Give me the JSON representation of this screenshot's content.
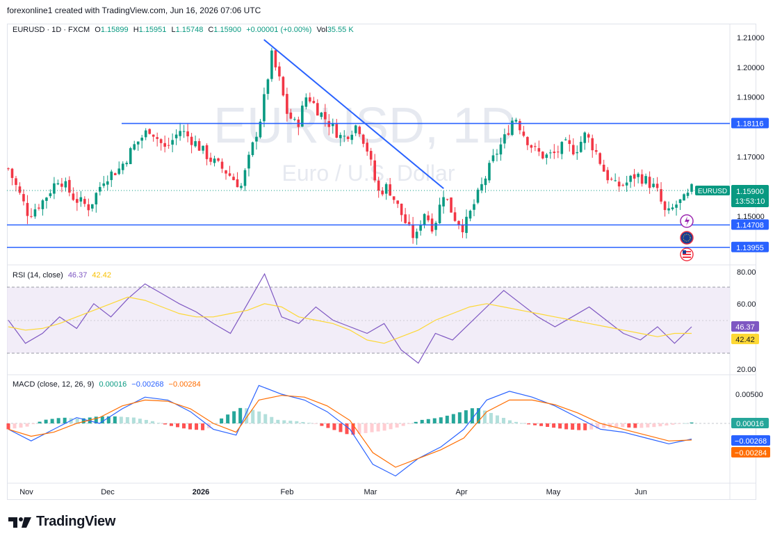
{
  "header": {
    "credit": "forexonline1 created with TradingView.com, Jun 16, 2026 07:06 UTC"
  },
  "symbol_legend": {
    "symbol": "EURUSD · 1D · FXCM",
    "o_label": "O",
    "o_value": "1.15899",
    "h_label": "H",
    "h_value": "1.15951",
    "l_label": "L",
    "l_value": "1.15748",
    "c_label": "C",
    "c_value": "1.15900",
    "change": "+0.00001 (+0.00%)",
    "vol_label": "Vol",
    "vol_value": "35.55 K"
  },
  "watermark": {
    "line1": "EURUSD, 1D",
    "line2": "Euro / U.S. Dollar"
  },
  "price_badges": {
    "symbol_badge": "EURUSD",
    "last_price": "1.15900",
    "countdown": "13:53:10",
    "levels": [
      "1.18116",
      "1.14708",
      "1.13955"
    ]
  },
  "rsi_legend": {
    "title": "RSI (14, close)",
    "value1": "46.37",
    "value2": "42.42"
  },
  "macd_legend": {
    "title": "MACD (close, 12, 26, 9)",
    "hist": "0.00016",
    "macd": "−0.00268",
    "signal": "−0.00284"
  },
  "macd_badges": {
    "hist": "0.00016",
    "macd": "−0.00268",
    "signal": "−0.00284"
  },
  "rsi_badges": {
    "value1": "46.37",
    "value2": "42.42"
  },
  "colors": {
    "up": "#089981",
    "down": "#f23645",
    "line": "#2962ff",
    "rsi": "#7e57c2",
    "rsi_ma": "#fdd835",
    "macd_signal": "#ff6d00"
  },
  "footer": {
    "brand": "TradingView"
  },
  "chart_data": [
    {
      "type": "candlestick",
      "title": "EURUSD · 1D · FXCM",
      "x_ticks": [
        "Nov",
        "Dec",
        "2026",
        "Feb",
        "Mar",
        "Apr",
        "May",
        "Jun"
      ],
      "y_ticks": [
        "1.21000",
        "1.20000",
        "1.19000",
        "1.17000",
        "1.15000"
      ],
      "ylim": [
        1.132,
        1.215
      ],
      "horizontal_levels": [
        1.18116,
        1.14708,
        1.13955
      ],
      "trendline": {
        "from": [
          1.2093,
          "Jan 27"
        ],
        "to": [
          1.1593,
          "Mar 30"
        ]
      },
      "close_path": [
        {
          "d": 0,
          "c": 1.166
        },
        {
          "d": 8,
          "c": 1.1505
        },
        {
          "d": 14,
          "c": 1.1555
        },
        {
          "d": 20,
          "c": 1.163
        },
        {
          "d": 26,
          "c": 1.156
        },
        {
          "d": 32,
          "c": 1.153
        },
        {
          "d": 38,
          "c": 1.163
        },
        {
          "d": 44,
          "c": 1.166
        },
        {
          "d": 50,
          "c": 1.174
        },
        {
          "d": 56,
          "c": 1.1795
        },
        {
          "d": 62,
          "c": 1.1725
        },
        {
          "d": 68,
          "c": 1.179
        },
        {
          "d": 74,
          "c": 1.1745
        },
        {
          "d": 80,
          "c": 1.169
        },
        {
          "d": 86,
          "c": 1.165
        },
        {
          "d": 92,
          "c": 1.16
        },
        {
          "d": 96,
          "c": 1.172
        },
        {
          "d": 100,
          "c": 1.184
        },
        {
          "d": 104,
          "c": 1.204
        },
        {
          "d": 107,
          "c": 1.196
        },
        {
          "d": 110,
          "c": 1.185
        },
        {
          "d": 114,
          "c": 1.18
        },
        {
          "d": 118,
          "c": 1.191
        },
        {
          "d": 122,
          "c": 1.186
        },
        {
          "d": 128,
          "c": 1.18
        },
        {
          "d": 132,
          "c": 1.176
        },
        {
          "d": 138,
          "c": 1.181
        },
        {
          "d": 142,
          "c": 1.172
        },
        {
          "d": 146,
          "c": 1.158
        },
        {
          "d": 150,
          "c": 1.16
        },
        {
          "d": 154,
          "c": 1.153
        },
        {
          "d": 158,
          "c": 1.146
        },
        {
          "d": 161,
          "c": 1.142
        },
        {
          "d": 164,
          "c": 1.152
        },
        {
          "d": 168,
          "c": 1.146
        },
        {
          "d": 172,
          "c": 1.158
        },
        {
          "d": 176,
          "c": 1.15
        },
        {
          "d": 180,
          "c": 1.146
        },
        {
          "d": 184,
          "c": 1.154
        },
        {
          "d": 188,
          "c": 1.162
        },
        {
          "d": 192,
          "c": 1.17
        },
        {
          "d": 196,
          "c": 1.176
        },
        {
          "d": 200,
          "c": 1.184
        },
        {
          "d": 204,
          "c": 1.177
        },
        {
          "d": 208,
          "c": 1.172
        },
        {
          "d": 212,
          "c": 1.17
        },
        {
          "d": 216,
          "c": 1.171
        },
        {
          "d": 220,
          "c": 1.174
        },
        {
          "d": 224,
          "c": 1.172
        },
        {
          "d": 228,
          "c": 1.1775
        },
        {
          "d": 232,
          "c": 1.172
        },
        {
          "d": 236,
          "c": 1.164
        },
        {
          "d": 240,
          "c": 1.16
        },
        {
          "d": 244,
          "c": 1.161
        },
        {
          "d": 248,
          "c": 1.164
        },
        {
          "d": 252,
          "c": 1.162
        },
        {
          "d": 256,
          "c": 1.159
        },
        {
          "d": 260,
          "c": 1.15
        },
        {
          "d": 264,
          "c": 1.154
        },
        {
          "d": 268,
          "c": 1.156
        },
        {
          "d": 270,
          "c": 1.159
        }
      ]
    },
    {
      "type": "line",
      "title": "RSI (14, close)",
      "y_ticks": [
        "80.00",
        "60.00",
        "20.00"
      ],
      "ylim": [
        15,
        85
      ],
      "bands": [
        70,
        50,
        30
      ],
      "series": [
        {
          "name": "RSI",
          "values": [
            50,
            36,
            42,
            52,
            45,
            60,
            52,
            63,
            72,
            66,
            60,
            55,
            48,
            42,
            60,
            78,
            52,
            48,
            58,
            50,
            46,
            42,
            48,
            32,
            24,
            42,
            38,
            48,
            58,
            68,
            60,
            52,
            46,
            52,
            58,
            50,
            42,
            38,
            46,
            36,
            46
          ]
        },
        {
          "name": "RSI MA",
          "values": [
            46,
            44,
            45,
            48,
            52,
            56,
            60,
            64,
            62,
            58,
            54,
            52,
            52,
            54,
            56,
            60,
            58,
            52,
            50,
            48,
            44,
            38,
            36,
            40,
            44,
            50,
            54,
            58,
            60,
            58,
            56,
            54,
            52,
            50,
            48,
            46,
            44,
            42,
            40,
            42,
            42
          ]
        }
      ]
    },
    {
      "type": "bar",
      "title": "MACD (close, 12, 26, 9)",
      "y_ticks": [
        "0.00500"
      ],
      "series": [
        {
          "name": "Histogram",
          "values": [
            -0.001,
            -0.0006,
            0.0006,
            0.001,
            0.0008,
            0.0012,
            0.0012,
            0.001,
            0.0004,
            -0.0004,
            -0.001,
            -0.0012,
            0.0012,
            0.0028,
            0.002,
            0.0006,
            0.0004,
            0.0,
            -0.001,
            -0.002,
            -0.0016,
            -0.0012,
            -0.0004,
            0.0006,
            0.001,
            0.0018,
            0.0028,
            0.0016,
            0.0004,
            -0.0002,
            -0.0006,
            -0.001,
            -0.0012,
            -0.0008,
            -0.0006,
            -0.0008,
            -0.0006,
            -0.0002,
            0.00016
          ]
        },
        {
          "name": "MACD",
          "values": [
            -0.001,
            -0.003,
            -0.001,
            0.001,
            0.0,
            0.0025,
            0.0045,
            0.004,
            0.002,
            -0.001,
            -0.002,
            0.0065,
            0.005,
            0.004,
            0.002,
            -0.001,
            -0.007,
            -0.009,
            -0.006,
            -0.004,
            -0.001,
            0.004,
            0.0055,
            0.0045,
            0.003,
            0.001,
            -0.001,
            -0.0015,
            -0.0025,
            -0.0035,
            -0.00268
          ]
        },
        {
          "name": "Signal",
          "values": [
            -0.001,
            -0.0022,
            -0.0015,
            0.0,
            0.001,
            0.003,
            0.004,
            0.0038,
            0.0025,
            0.0,
            -0.0015,
            0.004,
            0.0048,
            0.0045,
            0.003,
            0.0005,
            -0.005,
            -0.0075,
            -0.006,
            -0.0045,
            -0.0025,
            0.002,
            0.004,
            0.004,
            0.0032,
            0.0018,
            0.0,
            -0.001,
            -0.002,
            -0.003,
            -0.00284
          ]
        }
      ]
    }
  ]
}
